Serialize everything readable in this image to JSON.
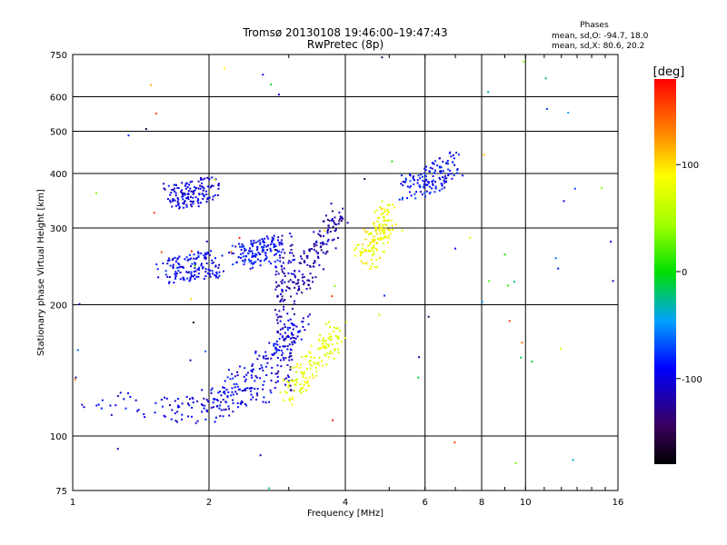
{
  "chart_data": {
    "type": "scatter",
    "title": "Tromsø 20130108 19:46:00–19:47:43",
    "subtitle": "RwPretec (8p)",
    "stats": {
      "heading": "Phases",
      "line1": "mean, sd,O: -94.7, 18.0",
      "line2": "mean, sd,X:  80.6, 20.2"
    },
    "xlabel": "Frequency [MHz]",
    "ylabel": "Stationary phase Virtual Height [km]",
    "x_scale": "log",
    "y_scale": "log",
    "xlim": [
      1,
      16
    ],
    "ylim": [
      75,
      750
    ],
    "x_ticks": [
      1,
      2,
      4,
      6,
      8,
      10,
      16
    ],
    "y_ticks": [
      75,
      100,
      200,
      300,
      400,
      500,
      600,
      750
    ],
    "grid": true,
    "colorbar": {
      "label": "[deg]",
      "range": [
        -180,
        180
      ],
      "ticks": [
        100,
        0,
        -100
      ]
    },
    "clusters": [
      {
        "name": "O-trace low",
        "x": [
          1.05,
          1.7,
          2.0,
          2.4,
          2.8
        ],
        "y": [
          120,
          115,
          115,
          125,
          130
        ],
        "phase": -100
      },
      {
        "name": "O-trace rise",
        "x": [
          2.0,
          2.5,
          2.9,
          3.2
        ],
        "y": [
          120,
          140,
          160,
          180
        ],
        "phase": -95
      },
      {
        "name": "O-trace cusp",
        "x": [
          2.95,
          2.95
        ],
        "y": [
          130,
          280
        ],
        "phase": -110
      },
      {
        "name": "O-F1 band",
        "x": [
          1.6,
          2.1
        ],
        "y": [
          240,
          250
        ],
        "phase": -95
      },
      {
        "name": "O-F1b",
        "x": [
          2.3,
          2.8
        ],
        "y": [
          255,
          270
        ],
        "phase": -90
      },
      {
        "name": "O-F2 band",
        "x": [
          1.65,
          2.05
        ],
        "y": [
          355,
          370
        ],
        "phase": -100
      },
      {
        "name": "O-F2 upper",
        "x": [
          3.1,
          3.9
        ],
        "y": [
          220,
          320
        ],
        "phase": -120
      },
      {
        "name": "X-trace",
        "x": [
          3.0,
          3.85
        ],
        "y": [
          125,
          175
        ],
        "phase": 80
      },
      {
        "name": "X-F2",
        "x": [
          4.4,
          5.0
        ],
        "y": [
          250,
          330
        ],
        "phase": 85
      },
      {
        "name": "high-freq echoes",
        "x": [
          5.5,
          7.1
        ],
        "y": [
          370,
          420
        ],
        "phase": -90
      }
    ]
  }
}
